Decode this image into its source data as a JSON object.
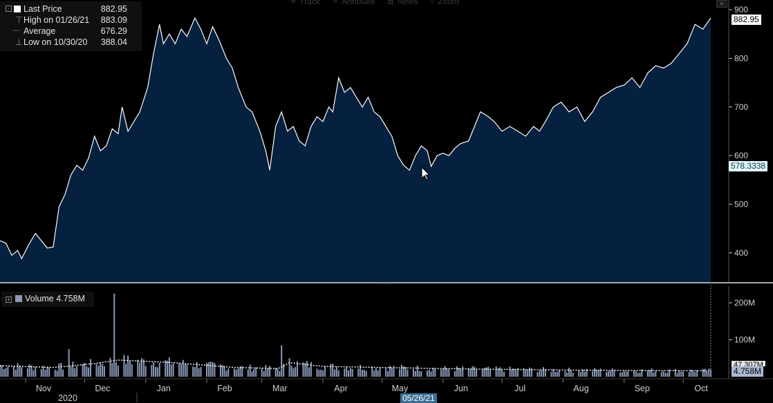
{
  "toolbar": {
    "items": [
      {
        "label": "Track",
        "icon": "track-icon"
      },
      {
        "label": "Annotate",
        "icon": "annotate-icon"
      },
      {
        "label": "News",
        "icon": "news-icon"
      },
      {
        "label": "Zoom",
        "icon": "zoom-icon"
      }
    ]
  },
  "legend": {
    "last_price_label": "Last Price",
    "last_price_value": "882.95",
    "high_label": "High on 01/26/21",
    "high_value": "883.09",
    "average_label": "Average",
    "average_value": "676.29",
    "low_label": "Low on 10/30/20",
    "low_value": "388.04"
  },
  "volume_legend": {
    "label": "Volume",
    "value": "4.758M"
  },
  "tags": {
    "last_price": "882.95",
    "crosshair_price": "578.3338",
    "volume_last": "4.758M",
    "volume_avg": "47.307M"
  },
  "crosshair_date": "05/26/21",
  "colors": {
    "area_fill": "#06203f",
    "line": "#ffffff",
    "volume_bar": "#8a99b8",
    "divider": "#aaaaaa"
  },
  "chart_data": [
    {
      "type": "area",
      "name": "Last Price",
      "y_unit": "price",
      "ylim": [
        340,
        920
      ],
      "y_ticks": [
        400,
        500,
        600,
        700,
        800,
        900
      ],
      "x_ticks": [
        "Nov",
        "Dec",
        "Jan",
        "Feb",
        "Mar",
        "Apr",
        "May",
        "Jun",
        "Jul",
        "Aug",
        "Sep",
        "Oct"
      ],
      "year_label": "2020",
      "x_range": [
        "2020-10-19",
        "2021-10-15"
      ],
      "points": [
        [
          "2020-10-19",
          425
        ],
        [
          "2020-10-22",
          420
        ],
        [
          "2020-10-25",
          395
        ],
        [
          "2020-10-28",
          405
        ],
        [
          "2020-10-30",
          388
        ],
        [
          "2020-11-03",
          420
        ],
        [
          "2020-11-06",
          440
        ],
        [
          "2020-11-09",
          425
        ],
        [
          "2020-11-12",
          410
        ],
        [
          "2020-11-15",
          412
        ],
        [
          "2020-11-18",
          495
        ],
        [
          "2020-11-21",
          520
        ],
        [
          "2020-11-24",
          560
        ],
        [
          "2020-11-27",
          580
        ],
        [
          "2020-11-30",
          570
        ],
        [
          "2020-12-03",
          595
        ],
        [
          "2020-12-06",
          640
        ],
        [
          "2020-12-09",
          610
        ],
        [
          "2020-12-12",
          620
        ],
        [
          "2020-12-15",
          655
        ],
        [
          "2020-12-18",
          645
        ],
        [
          "2020-12-20",
          700
        ],
        [
          "2020-12-23",
          650
        ],
        [
          "2020-12-26",
          670
        ],
        [
          "2020-12-29",
          690
        ],
        [
          "2021-01-02",
          740
        ],
        [
          "2021-01-05",
          810
        ],
        [
          "2021-01-08",
          870
        ],
        [
          "2021-01-10",
          830
        ],
        [
          "2021-01-13",
          850
        ],
        [
          "2021-01-16",
          830
        ],
        [
          "2021-01-19",
          860
        ],
        [
          "2021-01-22",
          845
        ],
        [
          "2021-01-26",
          883
        ],
        [
          "2021-01-29",
          860
        ],
        [
          "2021-02-01",
          830
        ],
        [
          "2021-02-04",
          865
        ],
        [
          "2021-02-07",
          840
        ],
        [
          "2021-02-11",
          800
        ],
        [
          "2021-02-14",
          780
        ],
        [
          "2021-02-17",
          740
        ],
        [
          "2021-02-21",
          700
        ],
        [
          "2021-02-24",
          690
        ],
        [
          "2021-02-28",
          650
        ],
        [
          "2021-03-03",
          610
        ],
        [
          "2021-03-05",
          570
        ],
        [
          "2021-03-08",
          660
        ],
        [
          "2021-03-11",
          690
        ],
        [
          "2021-03-14",
          650
        ],
        [
          "2021-03-17",
          660
        ],
        [
          "2021-03-20",
          630
        ],
        [
          "2021-03-23",
          620
        ],
        [
          "2021-03-26",
          660
        ],
        [
          "2021-03-29",
          680
        ],
        [
          "2021-04-01",
          670
        ],
        [
          "2021-04-04",
          700
        ],
        [
          "2021-04-06",
          690
        ],
        [
          "2021-04-09",
          760
        ],
        [
          "2021-04-12",
          730
        ],
        [
          "2021-04-15",
          740
        ],
        [
          "2021-04-18",
          720
        ],
        [
          "2021-04-21",
          700
        ],
        [
          "2021-04-24",
          720
        ],
        [
          "2021-04-27",
          690
        ],
        [
          "2021-04-30",
          680
        ],
        [
          "2021-05-03",
          660
        ],
        [
          "2021-05-06",
          640
        ],
        [
          "2021-05-09",
          600
        ],
        [
          "2021-05-12",
          580
        ],
        [
          "2021-05-15",
          570
        ],
        [
          "2021-05-18",
          600
        ],
        [
          "2021-05-21",
          620
        ],
        [
          "2021-05-24",
          610
        ],
        [
          "2021-05-26",
          578
        ],
        [
          "2021-05-29",
          600
        ],
        [
          "2021-06-01",
          605
        ],
        [
          "2021-06-04",
          600
        ],
        [
          "2021-06-07",
          615
        ],
        [
          "2021-06-10",
          625
        ],
        [
          "2021-06-14",
          630
        ],
        [
          "2021-06-17",
          660
        ],
        [
          "2021-06-20",
          690
        ],
        [
          "2021-06-24",
          680
        ],
        [
          "2021-06-27",
          670
        ],
        [
          "2021-07-01",
          650
        ],
        [
          "2021-07-05",
          660
        ],
        [
          "2021-07-09",
          650
        ],
        [
          "2021-07-13",
          640
        ],
        [
          "2021-07-17",
          660
        ],
        [
          "2021-07-20",
          650
        ],
        [
          "2021-07-23",
          670
        ],
        [
          "2021-07-27",
          700
        ],
        [
          "2021-07-31",
          710
        ],
        [
          "2021-08-04",
          690
        ],
        [
          "2021-08-08",
          700
        ],
        [
          "2021-08-12",
          670
        ],
        [
          "2021-08-16",
          690
        ],
        [
          "2021-08-20",
          720
        ],
        [
          "2021-08-24",
          730
        ],
        [
          "2021-08-28",
          740
        ],
        [
          "2021-09-01",
          745
        ],
        [
          "2021-09-05",
          760
        ],
        [
          "2021-09-09",
          740
        ],
        [
          "2021-09-13",
          770
        ],
        [
          "2021-09-17",
          785
        ],
        [
          "2021-09-21",
          780
        ],
        [
          "2021-09-25",
          790
        ],
        [
          "2021-09-29",
          810
        ],
        [
          "2021-10-03",
          830
        ],
        [
          "2021-10-07",
          870
        ],
        [
          "2021-10-11",
          860
        ],
        [
          "2021-10-15",
          883
        ]
      ]
    },
    {
      "type": "bar",
      "name": "Volume",
      "y_unit": "volume (M)",
      "ylim": [
        0,
        245
      ],
      "y_ticks": [
        {
          "value": 100,
          "label": "100M"
        },
        {
          "value": 200,
          "label": "200M"
        }
      ],
      "x_range": [
        "2020-10-19",
        "2021-10-15"
      ],
      "moving_average": [
        [
          "2020-10-19",
          30
        ],
        [
          "2020-11-15",
          25
        ],
        [
          "2020-12-05",
          35
        ],
        [
          "2020-12-18",
          45
        ],
        [
          "2021-01-15",
          38
        ],
        [
          "2021-02-15",
          25
        ],
        [
          "2021-03-10",
          22
        ],
        [
          "2021-03-15",
          38
        ],
        [
          "2021-04-01",
          28
        ],
        [
          "2021-06-01",
          22
        ],
        [
          "2021-08-01",
          18
        ],
        [
          "2021-10-15",
          16
        ]
      ],
      "peaks": [
        [
          "2020-12-16",
          225
        ],
        [
          "2020-11-23",
          75
        ],
        [
          "2021-03-11",
          85
        ],
        [
          "2021-03-07",
          65
        ],
        [
          "2021-01-03",
          60
        ]
      ]
    }
  ]
}
